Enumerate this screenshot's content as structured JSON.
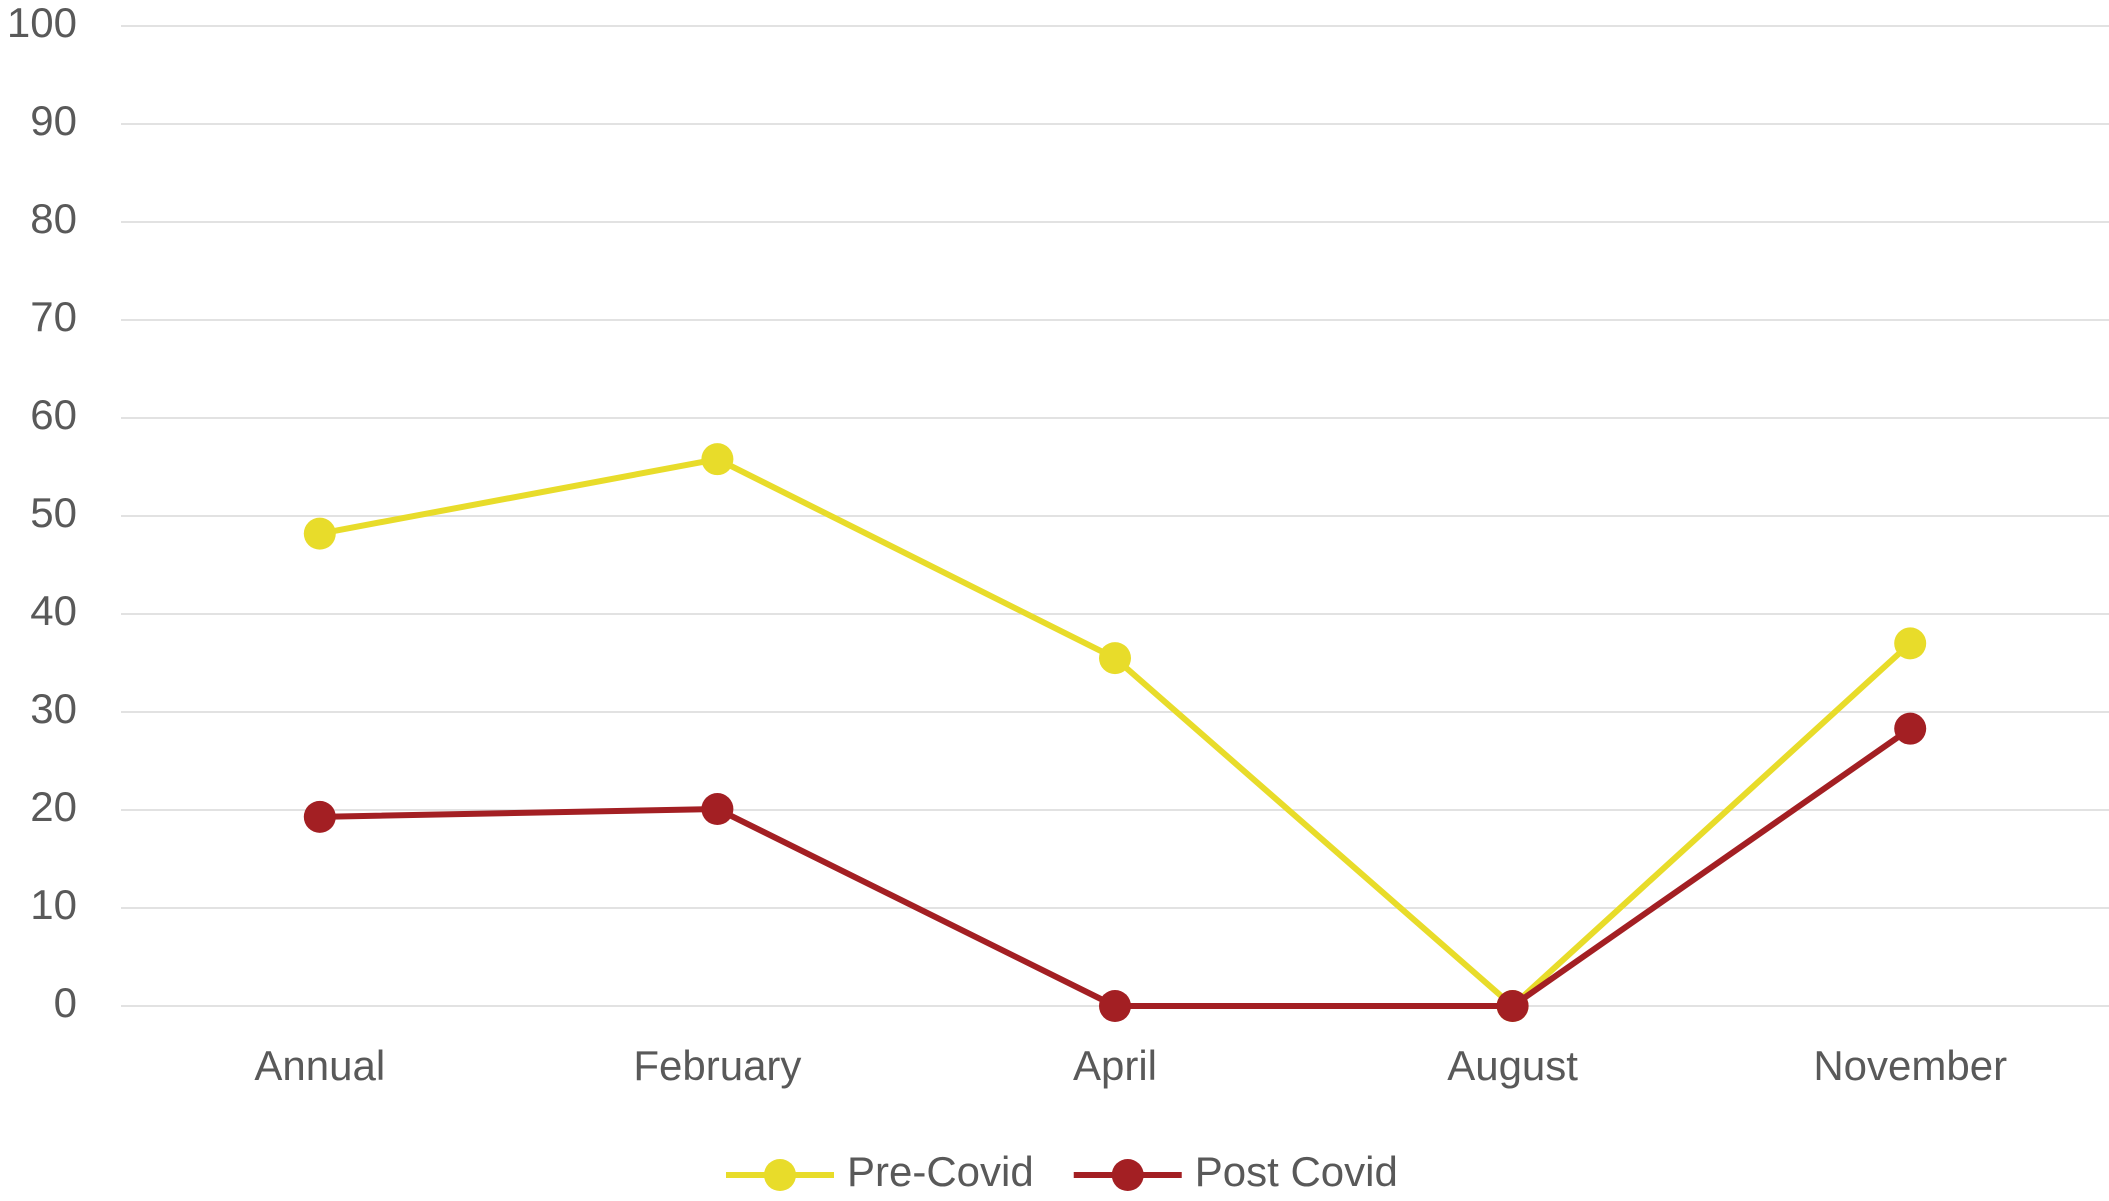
{
  "chart_data": {
    "type": "line",
    "categories": [
      "Annual",
      "February",
      "April",
      "August",
      "November"
    ],
    "series": [
      {
        "name": "Pre-Covid",
        "color": "#e8dc2a",
        "values": [
          48.2,
          55.8,
          35.5,
          0,
          37
        ]
      },
      {
        "name": "Post Covid",
        "color": "#a31f23",
        "values": [
          19.3,
          20.1,
          0,
          0,
          28.3
        ]
      }
    ],
    "ylim": [
      0,
      100
    ],
    "yticks": [
      0,
      10,
      20,
      30,
      40,
      50,
      60,
      70,
      80,
      90,
      100
    ],
    "grid": true,
    "legend": "bottom"
  }
}
